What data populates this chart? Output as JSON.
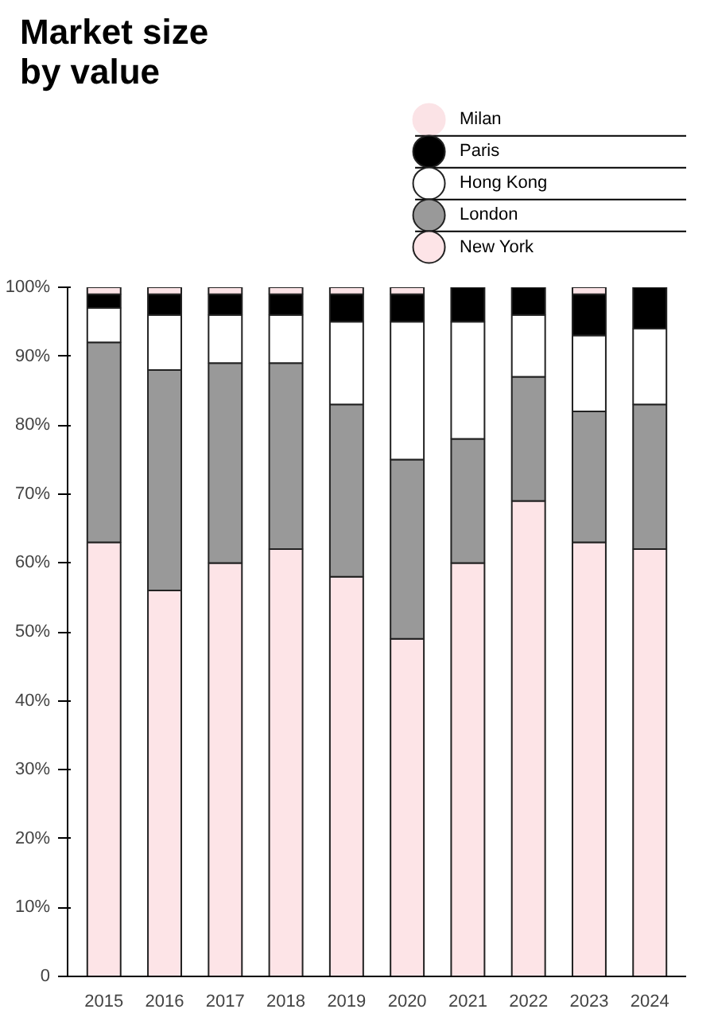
{
  "chart_data": {
    "type": "bar",
    "title": "Market size\nby value",
    "stacked": true,
    "legend": "top right",
    "grid": false,
    "categories": [
      "2015",
      "2016",
      "2017",
      "2018",
      "2019",
      "2020",
      "2021",
      "2022",
      "2023",
      "2024"
    ],
    "series": [
      {
        "name": "New York",
        "color": "#fde4e7",
        "values": [
          63,
          56,
          60,
          62,
          58,
          49,
          60,
          69,
          63,
          62
        ]
      },
      {
        "name": "London",
        "color": "#999999",
        "values": [
          29,
          32,
          29,
          27,
          25,
          26,
          18,
          18,
          19,
          21
        ]
      },
      {
        "name": "Hong Kong",
        "color": "#ffffff",
        "values": [
          5,
          8,
          7,
          7,
          12,
          20,
          17,
          9,
          11,
          11
        ]
      },
      {
        "name": "Paris",
        "color": "#000000",
        "values": [
          2,
          3,
          3,
          3,
          4,
          4,
          5,
          4,
          6,
          6
        ]
      },
      {
        "name": "Milan",
        "color": "#fbe3e6",
        "values": [
          1,
          1,
          1,
          1,
          1,
          1,
          null,
          null,
          1,
          null
        ]
      }
    ],
    "ylim": [
      0,
      100
    ],
    "yticks": [
      0,
      {
        "value": 10,
        "label": "10%"
      },
      {
        "value": 20,
        "label": "20%"
      },
      {
        "value": 30,
        "label": "30%"
      },
      {
        "value": 40,
        "label": "40%"
      },
      {
        "value": 50,
        "label": "50%"
      },
      {
        "value": 60,
        "label": "60%"
      },
      {
        "value": 70,
        "label": "70%"
      },
      {
        "value": 80,
        "label": "80%"
      },
      {
        "value": 90,
        "label": "90%"
      },
      {
        "value": 100,
        "label": "100%"
      }
    ]
  }
}
